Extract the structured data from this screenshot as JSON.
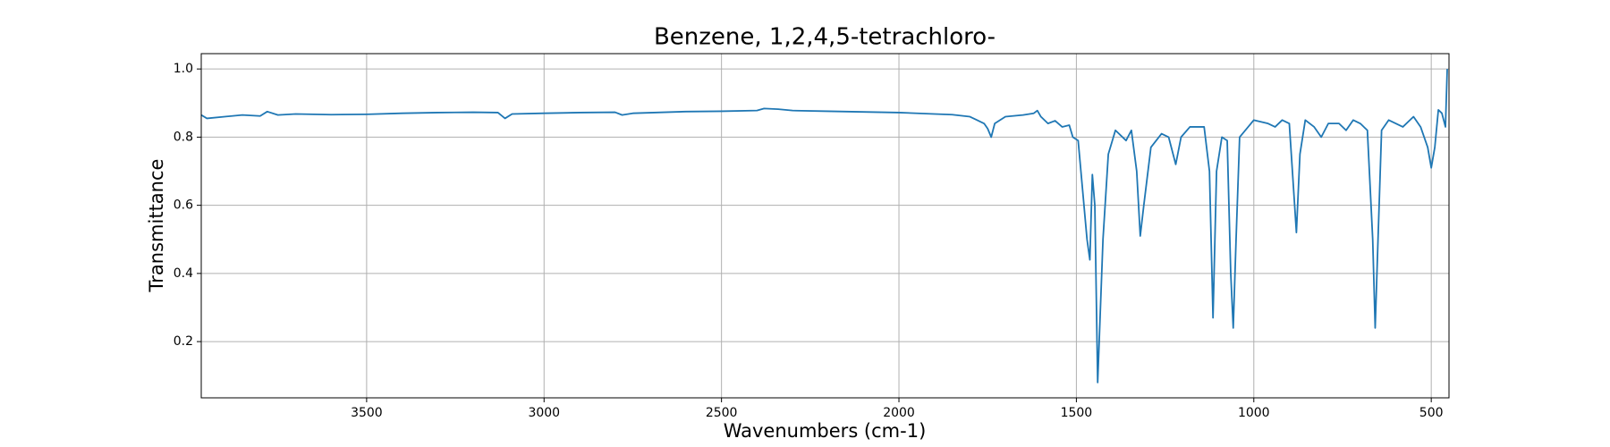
{
  "chart_data": {
    "type": "line",
    "title": "Benzene, 1,2,4,5-tetrachloro-",
    "x_label": "Wavenumbers (cm-1)",
    "y_label": "Transmittance",
    "color": "#1f77b4",
    "grid": true,
    "xlim": [
      3966,
      450
    ],
    "ylim": [
      0.035,
      1.045
    ],
    "xticks": [
      3500,
      3000,
      2500,
      2000,
      1500,
      1000,
      500
    ],
    "yticks": [
      0.2,
      0.4,
      0.6,
      0.8,
      {
        "value": 1,
        "label": "1.0"
      }
    ],
    "x": [
      3966,
      3950,
      3900,
      3850,
      3800,
      3780,
      3750,
      3700,
      3600,
      3500,
      3400,
      3300,
      3200,
      3130,
      3110,
      3090,
      3000,
      2900,
      2800,
      2780,
      2750,
      2600,
      2500,
      2400,
      2380,
      2340,
      2300,
      2200,
      2100,
      2000,
      1900,
      1850,
      1800,
      1780,
      1760,
      1750,
      1740,
      1730,
      1700,
      1650,
      1620,
      1610,
      1600,
      1580,
      1560,
      1540,
      1520,
      1510,
      1495,
      1470,
      1462,
      1455,
      1448,
      1440,
      1425,
      1410,
      1390,
      1360,
      1345,
      1330,
      1320,
      1310,
      1290,
      1260,
      1240,
      1220,
      1205,
      1180,
      1140,
      1125,
      1115,
      1105,
      1090,
      1075,
      1065,
      1058,
      1050,
      1040,
      1000,
      960,
      940,
      920,
      900,
      880,
      870,
      855,
      830,
      810,
      790,
      760,
      740,
      720,
      700,
      680,
      665,
      658,
      650,
      640,
      620,
      580,
      550,
      530,
      510,
      500,
      490,
      480,
      470,
      460,
      455
    ],
    "values": [
      0.865,
      0.855,
      0.86,
      0.865,
      0.862,
      0.875,
      0.865,
      0.868,
      0.866,
      0.867,
      0.87,
      0.872,
      0.873,
      0.872,
      0.855,
      0.868,
      0.87,
      0.872,
      0.873,
      0.865,
      0.87,
      0.875,
      0.876,
      0.878,
      0.884,
      0.882,
      0.878,
      0.876,
      0.874,
      0.872,
      0.868,
      0.866,
      0.86,
      0.85,
      0.84,
      0.825,
      0.8,
      0.84,
      0.86,
      0.865,
      0.87,
      0.878,
      0.86,
      0.84,
      0.848,
      0.83,
      0.835,
      0.8,
      0.79,
      0.5,
      0.44,
      0.69,
      0.6,
      0.08,
      0.5,
      0.75,
      0.82,
      0.79,
      0.82,
      0.7,
      0.51,
      0.6,
      0.77,
      0.81,
      0.8,
      0.72,
      0.8,
      0.83,
      0.83,
      0.7,
      0.27,
      0.7,
      0.8,
      0.79,
      0.4,
      0.24,
      0.5,
      0.8,
      0.85,
      0.84,
      0.83,
      0.85,
      0.84,
      0.52,
      0.75,
      0.85,
      0.83,
      0.8,
      0.84,
      0.84,
      0.82,
      0.85,
      0.84,
      0.82,
      0.5,
      0.24,
      0.5,
      0.82,
      0.85,
      0.83,
      0.86,
      0.83,
      0.77,
      0.71,
      0.77,
      0.88,
      0.87,
      0.83,
      1.0
    ]
  }
}
